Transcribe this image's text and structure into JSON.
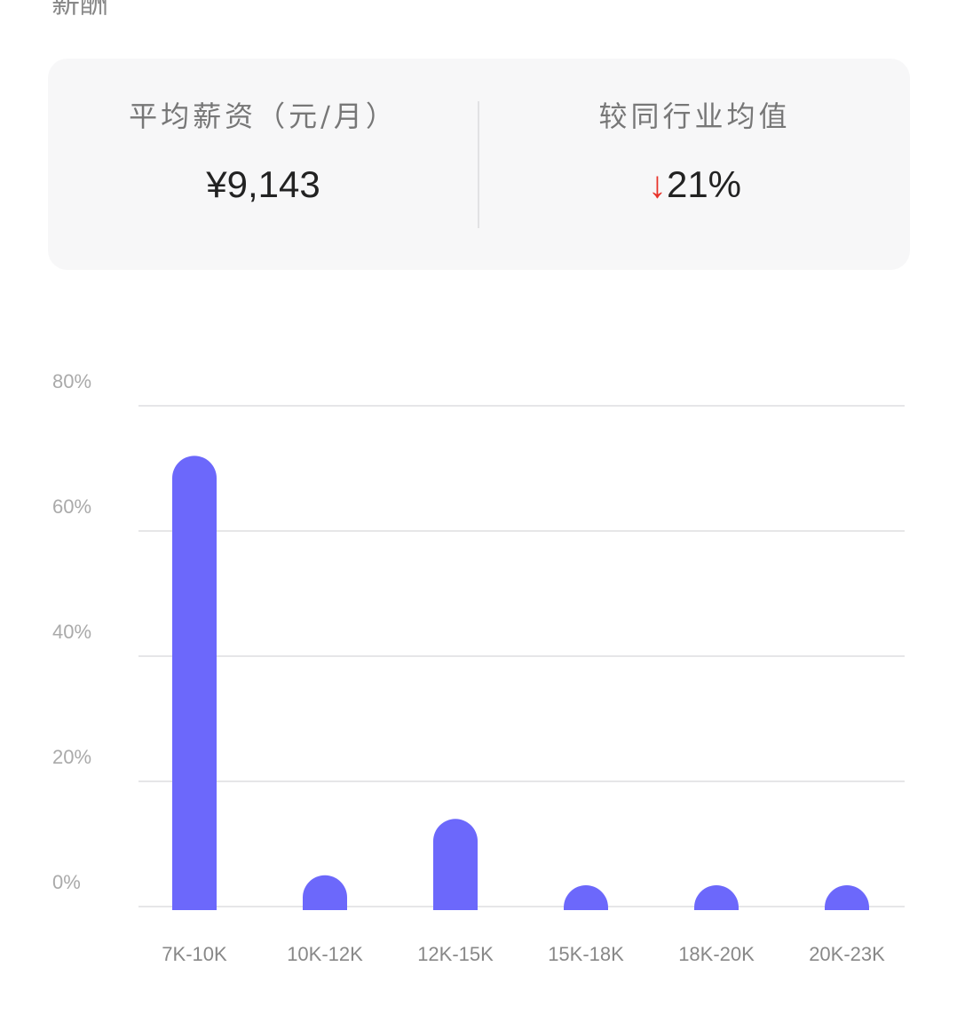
{
  "section_title": "薪酬",
  "summary": {
    "avg_salary_label": "平均薪资（元/月）",
    "avg_salary_value": "¥9,143",
    "compare_label": "较同行业均值",
    "compare_direction": "down",
    "compare_arrow": "↓",
    "compare_value": "21%",
    "down_color": "#e8332a"
  },
  "chart_data": {
    "type": "bar",
    "categories": [
      "7K-10K",
      "10K-12K",
      "12K-15K",
      "15K-18K",
      "18K-20K",
      "20K-23K"
    ],
    "values": [
      72,
      5,
      14,
      2,
      2,
      2
    ],
    "yticks": [
      "0%",
      "20%",
      "40%",
      "60%",
      "80%"
    ],
    "ylim": [
      0,
      80
    ],
    "grid": true,
    "bar_color": "#6c68fb"
  }
}
